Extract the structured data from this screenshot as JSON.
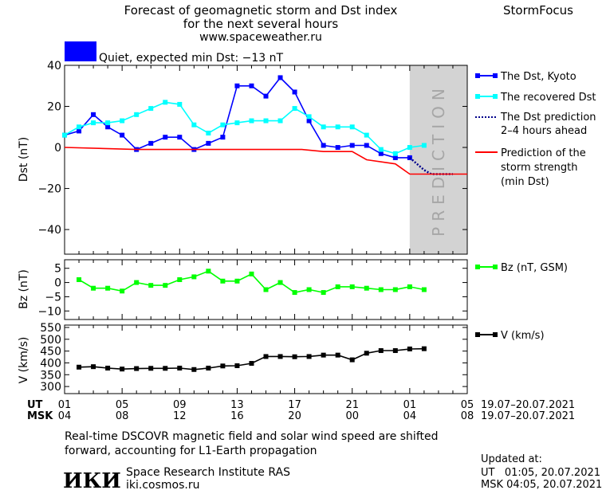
{
  "header": {
    "title_line1": "Forecast of geomagnetic storm and Dst index",
    "title_line2": "for the next several hours",
    "site": "www.spaceweather.ru",
    "brand": "StormFocus"
  },
  "status": {
    "label": "Quiet, expected min Dst: −13 nT",
    "color": "#0000ff"
  },
  "prediction_label": "PREDICTION",
  "legend": {
    "dst_kyoto": "The Dst, Kyoto",
    "recovered": "The recovered Dst",
    "prediction_line1": "The Dst prediction",
    "prediction_line2": "2–4 hours ahead",
    "strength_line1": "Prediction of the",
    "strength_line2": "storm strength",
    "strength_line3": "(min Dst)",
    "bz": "Bz (nT, GSM)",
    "v": "V (km/s)"
  },
  "time_axis": {
    "ut_label": "UT",
    "msk_label": "MSK",
    "ut_ticks": [
      "01",
      "05",
      "09",
      "13",
      "17",
      "21",
      "01",
      "05"
    ],
    "msk_ticks": [
      "04",
      "08",
      "12",
      "16",
      "20",
      "00",
      "04",
      "08"
    ],
    "ut_range": "19.07–20.07.2021",
    "msk_range": "19.07–20.07.2021"
  },
  "footer": {
    "note_line1": "Real-time DSCOVR magnetic field and solar wind speed are shifted",
    "note_line2": "forward, accounting for L1-Earth propagation",
    "logo": "ИКИ",
    "institute": "Space Research Institute RAS",
    "institute_url": "iki.cosmos.ru",
    "updated_label": "Updated at:",
    "updated_ut": "UT   01:05, 20.07.2021",
    "updated_msk": "MSK 04:05, 20.07.2021"
  },
  "chart_data": [
    {
      "type": "line",
      "ylabel": "Dst (nT)",
      "ylim": [
        -52,
        40
      ],
      "yticks": [
        40,
        20,
        0,
        -20,
        -40
      ],
      "xlim": [
        0,
        28
      ],
      "prediction_region": [
        24,
        28
      ],
      "series": [
        {
          "name": "The Dst, Kyoto",
          "color": "#0000ff",
          "marker": "square",
          "x": [
            0,
            1,
            2,
            3,
            4,
            5,
            6,
            7,
            8,
            9,
            10,
            11,
            12,
            13,
            14,
            15,
            16,
            17,
            18,
            19,
            20,
            21,
            22,
            23,
            24
          ],
          "y": [
            6,
            8,
            16,
            10,
            6,
            -1,
            2,
            5,
            5,
            -1,
            2,
            5,
            30,
            30,
            25,
            34,
            27,
            13,
            1,
            0,
            1,
            1,
            -3,
            -5,
            -5
          ]
        },
        {
          "name": "The recovered Dst",
          "color": "#00ffff",
          "marker": "square",
          "x": [
            0,
            1,
            2,
            3,
            4,
            5,
            6,
            7,
            8,
            9,
            10,
            11,
            12,
            13,
            14,
            15,
            16,
            17,
            18,
            19,
            20,
            21,
            22,
            23,
            24,
            25
          ],
          "y": [
            6,
            10,
            12,
            12,
            13,
            16,
            19,
            22,
            21,
            11,
            7,
            11,
            12,
            13,
            13,
            13,
            19,
            15,
            10,
            10,
            10,
            6,
            -1,
            -3,
            0,
            1
          ]
        },
        {
          "name": "The Dst prediction 2–4 hours ahead",
          "color": "#00008b",
          "style": "dotted",
          "x": [
            24,
            24.5,
            25,
            25.5,
            26,
            27
          ],
          "y": [
            -5,
            -8,
            -11,
            -13,
            -13,
            -13
          ]
        },
        {
          "name": "Prediction of the storm strength (min Dst)",
          "color": "#ff0000",
          "x": [
            0,
            5,
            10,
            16.5,
            18,
            19,
            20,
            21,
            23,
            24,
            28
          ],
          "y": [
            0,
            -1,
            -1,
            -1,
            -2,
            -2,
            -2,
            -6,
            -8,
            -13,
            -13
          ]
        }
      ]
    },
    {
      "type": "line",
      "ylabel": "Bz (nT)",
      "ylim": [
        -13,
        8
      ],
      "yticks": [
        5,
        0,
        -5,
        -10
      ],
      "xlim": [
        0,
        28
      ],
      "series": [
        {
          "name": "Bz (nT, GSM)",
          "color": "#00ff00",
          "marker": "square",
          "x": [
            1,
            2,
            3,
            4,
            5,
            6,
            7,
            8,
            9,
            10,
            11,
            12,
            13,
            14,
            15,
            16,
            17,
            18,
            19,
            20,
            21,
            22,
            23,
            24,
            25
          ],
          "y": [
            1,
            -2,
            -2,
            -3,
            0,
            -1,
            -1,
            1,
            2,
            4,
            0.5,
            0.5,
            3,
            -2.5,
            0,
            -3.5,
            -2.5,
            -3.5,
            -1.5,
            -1.5,
            -2,
            -2.5,
            -2.5,
            -1.5,
            -2.5
          ]
        }
      ]
    },
    {
      "type": "line",
      "ylabel": "V (km/s)",
      "ylim": [
        270,
        560
      ],
      "yticks": [
        550,
        500,
        450,
        400,
        350,
        300
      ],
      "xlim": [
        0,
        28
      ],
      "series": [
        {
          "name": "V (km/s)",
          "color": "#000000",
          "marker": "square",
          "x": [
            1,
            2,
            3,
            4,
            5,
            6,
            7,
            8,
            9,
            10,
            11,
            12,
            13,
            14,
            15,
            16,
            17,
            18,
            19,
            20,
            21,
            22,
            23,
            24,
            25
          ],
          "y": [
            382,
            384,
            378,
            374,
            376,
            377,
            377,
            378,
            372,
            378,
            387,
            388,
            398,
            427,
            427,
            426,
            427,
            433,
            433,
            413,
            441,
            452,
            452,
            459,
            460
          ]
        }
      ]
    }
  ]
}
